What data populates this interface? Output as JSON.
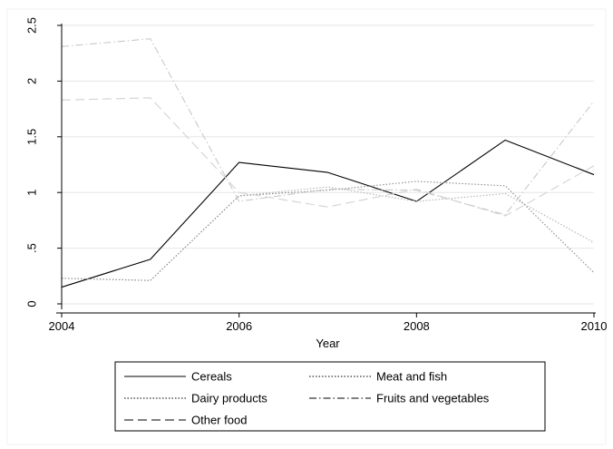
{
  "chart_data": {
    "type": "line",
    "xlabel": "Year",
    "ylabel": "",
    "x": [
      2004,
      2005,
      2006,
      2007,
      2008,
      2009,
      2010
    ],
    "x_ticks": [
      "2004",
      "2006",
      "2008",
      "2010"
    ],
    "y_ticks": [
      "0",
      ".5",
      "1",
      "1.5",
      "2",
      "2.5"
    ],
    "xlim": [
      2004,
      2010
    ],
    "ylim": [
      0,
      2.5
    ],
    "grid": "horizontal",
    "legend_position": "bottom",
    "series": [
      {
        "name": "Cereals",
        "values": [
          0.15,
          0.4,
          1.27,
          1.18,
          0.92,
          1.47,
          1.16
        ],
        "color": "#000000",
        "dash": "solid"
      },
      {
        "name": "Meat and fish",
        "values": [
          0.23,
          0.21,
          0.97,
          1.05,
          0.92,
          0.99,
          0.55
        ],
        "color": "#b3b3b3",
        "dash": "dotted"
      },
      {
        "name": "Dairy products",
        "values": [
          0.23,
          0.21,
          0.97,
          1.02,
          1.1,
          1.06,
          0.28
        ],
        "color": "#8c8c8c",
        "dash": "dotted"
      },
      {
        "name": "Fruits and vegetables",
        "values": [
          2.31,
          2.38,
          0.92,
          1.03,
          1.02,
          0.8,
          1.82
        ],
        "color": "#c8c8c8",
        "dash": "dashdot"
      },
      {
        "name": "Other food",
        "values": [
          1.83,
          1.85,
          1.0,
          0.87,
          1.03,
          0.79,
          1.24
        ],
        "color": "#d2d2d2",
        "dash": "longdash"
      }
    ],
    "legend_series": [
      {
        "name": "Cereals",
        "color": "#000000",
        "dash": "solid"
      },
      {
        "name": "Meat and fish",
        "color": "#000000",
        "dash": "dotted"
      },
      {
        "name": "Dairy products",
        "color": "#000000",
        "dash": "dotted"
      },
      {
        "name": "Fruits and vegetables",
        "color": "#000000",
        "dash": "dashdot"
      },
      {
        "name": "Other food",
        "color": "#000000",
        "dash": "longdash"
      }
    ]
  }
}
